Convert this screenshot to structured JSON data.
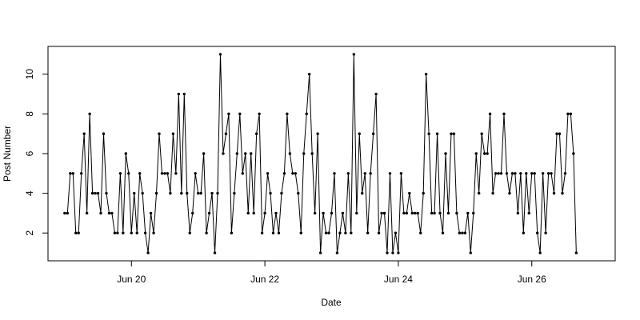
{
  "chart_data": {
    "type": "line",
    "markers": true,
    "title": "",
    "xlabel": "Date",
    "ylabel": "Post Number",
    "x_start_date": "2014-06-19",
    "x_step_hours": 1,
    "xlim": [
      "2014-06-18T18:00",
      "2014-06-27T06:00"
    ],
    "ylim": [
      0.6,
      11.4
    ],
    "xticks": [
      {
        "date": "2014-06-20",
        "label": "Jun 20"
      },
      {
        "date": "2014-06-22",
        "label": "Jun 22"
      },
      {
        "date": "2014-06-24",
        "label": "Jun 24"
      },
      {
        "date": "2014-06-26",
        "label": "Jun 26"
      }
    ],
    "yticks": [
      {
        "value": 2,
        "label": "2"
      },
      {
        "value": 4,
        "label": "4"
      },
      {
        "value": 6,
        "label": "6"
      },
      {
        "value": 8,
        "label": "8"
      },
      {
        "value": 10,
        "label": "10"
      }
    ],
    "grid": false,
    "line_color": "#000000",
    "y": [
      3,
      3,
      5,
      5,
      2,
      2,
      5,
      7,
      3,
      8,
      4,
      4,
      4,
      3,
      7,
      4,
      3,
      3,
      2,
      2,
      5,
      2,
      6,
      5,
      2,
      4,
      2,
      5,
      4,
      2,
      1,
      3,
      2,
      4,
      7,
      5,
      5,
      5,
      4,
      7,
      5,
      9,
      4,
      9,
      4,
      2,
      3,
      5,
      4,
      4,
      6,
      2,
      3,
      4,
      1,
      4,
      11,
      6,
      7,
      8,
      2,
      4,
      6,
      8,
      5,
      6,
      3,
      6,
      3,
      7,
      8,
      2,
      3,
      5,
      4,
      2,
      3,
      2,
      4,
      5,
      8,
      6,
      5,
      5,
      4,
      2,
      6,
      8,
      10,
      6,
      3,
      7,
      1,
      3,
      2,
      2,
      3,
      5,
      1,
      2,
      3,
      2,
      5,
      2,
      11,
      3,
      7,
      4,
      5,
      2,
      5,
      7,
      9,
      2,
      3,
      3,
      1,
      5,
      1,
      2,
      1,
      5,
      3,
      3,
      4,
      3,
      3,
      3,
      2,
      4,
      10,
      7,
      3,
      3,
      7,
      3,
      2,
      6,
      3,
      7,
      7,
      3,
      2,
      2,
      2,
      3,
      1,
      3,
      6,
      4,
      7,
      6,
      6,
      8,
      4,
      5,
      5,
      5,
      8,
      5,
      4,
      5,
      5,
      3,
      5,
      2,
      5,
      3,
      5,
      5,
      2,
      1,
      5,
      2,
      5,
      5,
      4,
      7,
      7,
      4,
      5,
      8,
      8,
      6,
      1
    ]
  }
}
